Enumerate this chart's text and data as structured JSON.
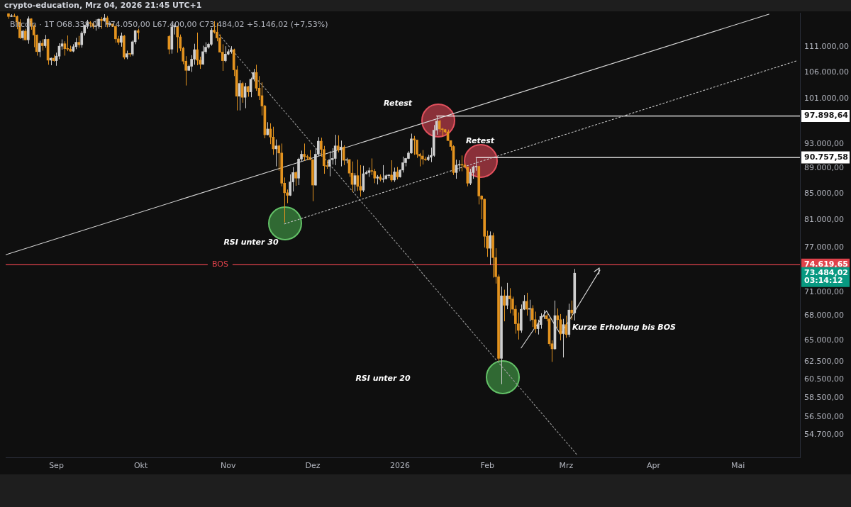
{
  "chart_data": {
    "type": "candlestick",
    "title": "crypto-education, Mrz 04, 2026 21:45 UTC+1",
    "subtitle": "Bitcoin · 1T  O68.338,01 H74.050,00 L67.400,00 C73.484,02 +5.146,02 (+7,53%)",
    "x": [
      "2025-08-15",
      "2025-08-16",
      "2025-08-17",
      "2025-08-18",
      "2025-08-19",
      "2025-08-20",
      "2025-08-21",
      "2025-08-22",
      "2025-08-23",
      "2025-08-24",
      "2025-08-25",
      "2025-08-26",
      "2025-08-27",
      "2025-08-28",
      "2025-08-29",
      "2025-08-30",
      "2025-08-31",
      "2025-09-01",
      "2025-09-02",
      "2025-09-03",
      "2025-09-04",
      "2025-09-05",
      "2025-09-06",
      "2025-09-07",
      "2025-09-08",
      "2025-09-09",
      "2025-09-10",
      "2025-09-11",
      "2025-09-12",
      "2025-09-13",
      "2025-09-14",
      "2025-09-15",
      "2025-09-16",
      "2025-09-17",
      "2025-09-18",
      "2025-09-19",
      "2025-09-20",
      "2025-09-21",
      "2025-09-22",
      "2025-09-23",
      "2025-09-24",
      "2025-09-25",
      "2025-09-26",
      "2025-09-27",
      "2025-09-28",
      "2025-09-29",
      "2025-09-30",
      "2025-10-11",
      "2025-10-12",
      "2025-10-13",
      "2025-10-14",
      "2025-10-15",
      "2025-10-16",
      "2025-10-17",
      "2025-10-18",
      "2025-10-19",
      "2025-10-20",
      "2025-10-21",
      "2025-10-22",
      "2025-10-23",
      "2025-10-24",
      "2025-10-25",
      "2025-10-26",
      "2025-10-27",
      "2025-10-28",
      "2025-10-29",
      "2025-10-30",
      "2025-10-31",
      "2025-11-01",
      "2025-11-02",
      "2025-11-03",
      "2025-11-04",
      "2025-11-05",
      "2025-11-06",
      "2025-11-07",
      "2025-11-08",
      "2025-11-09",
      "2025-11-10",
      "2025-11-11",
      "2025-11-12",
      "2025-11-13",
      "2025-11-14",
      "2025-11-15",
      "2025-11-16",
      "2025-11-17",
      "2025-11-18",
      "2025-11-19",
      "2025-11-20",
      "2025-11-21",
      "2025-11-22",
      "2025-11-23",
      "2025-11-24",
      "2025-11-25",
      "2025-11-26",
      "2025-11-27",
      "2025-11-28",
      "2025-11-29",
      "2025-11-30",
      "2025-12-01",
      "2025-12-02",
      "2025-12-03",
      "2025-12-04",
      "2025-12-05",
      "2025-12-06",
      "2025-12-07",
      "2025-12-08",
      "2025-12-09",
      "2025-12-10",
      "2025-12-11",
      "2025-12-12",
      "2025-12-13",
      "2025-12-14",
      "2025-12-15",
      "2025-12-16",
      "2025-12-17",
      "2025-12-18",
      "2025-12-19",
      "2025-12-20",
      "2025-12-21",
      "2025-12-22",
      "2025-12-23",
      "2025-12-24",
      "2025-12-25",
      "2025-12-26",
      "2025-12-27",
      "2025-12-28",
      "2025-12-29",
      "2025-12-30",
      "2025-12-31",
      "2026-01-01",
      "2026-01-02",
      "2026-01-03",
      "2026-01-04",
      "2026-01-05",
      "2026-01-06",
      "2026-01-07",
      "2026-01-08",
      "2026-01-09",
      "2026-01-10",
      "2026-01-11",
      "2026-01-12",
      "2026-01-13",
      "2026-01-14",
      "2026-01-15",
      "2026-01-16",
      "2026-01-17",
      "2026-01-18",
      "2026-01-19",
      "2026-01-20",
      "2026-01-21",
      "2026-01-22",
      "2026-01-23",
      "2026-01-24",
      "2026-01-25",
      "2026-01-26",
      "2026-01-27",
      "2026-01-28",
      "2026-01-29",
      "2026-01-30",
      "2026-01-31",
      "2026-02-01",
      "2026-02-02",
      "2026-02-03",
      "2026-02-04",
      "2026-02-05",
      "2026-02-06",
      "2026-02-07",
      "2026-02-08",
      "2026-02-09",
      "2026-02-10",
      "2026-02-11",
      "2026-02-12",
      "2026-02-13",
      "2026-02-14",
      "2026-02-15",
      "2026-02-16",
      "2026-02-17",
      "2026-02-18",
      "2026-02-19",
      "2026-02-20",
      "2026-02-21",
      "2026-02-22",
      "2026-02-23",
      "2026-02-24",
      "2026-02-25",
      "2026-02-26",
      "2026-02-27",
      "2026-02-28",
      "2026-03-01",
      "2026-03-02",
      "2026-03-03",
      "2026-03-04"
    ],
    "ohlc": [
      [
        118000,
        118100,
        116900,
        117400
      ],
      [
        117400,
        117900,
        117300,
        117500
      ],
      [
        117500,
        118000,
        117300,
        117400
      ],
      [
        117400,
        117600,
        114700,
        116200
      ],
      [
        116200,
        116800,
        112700,
        112900
      ],
      [
        112900,
        114600,
        112400,
        114300
      ],
      [
        114300,
        114800,
        112400,
        112500
      ],
      [
        112500,
        117400,
        111700,
        116900
      ],
      [
        116900,
        117000,
        114600,
        115400
      ],
      [
        115400,
        115700,
        111000,
        113500
      ],
      [
        113500,
        113600,
        109300,
        110100
      ],
      [
        110100,
        112300,
        109000,
        111800
      ],
      [
        111800,
        112600,
        110300,
        111300
      ],
      [
        111300,
        113500,
        110900,
        112600
      ],
      [
        112600,
        112700,
        107500,
        108400
      ],
      [
        108400,
        108900,
        107400,
        108800
      ],
      [
        108800,
        109500,
        108100,
        108300
      ],
      [
        108300,
        109900,
        107300,
        109200
      ],
      [
        109200,
        111800,
        108600,
        111200
      ],
      [
        111200,
        112600,
        110500,
        111700
      ],
      [
        111700,
        112200,
        109300,
        110700
      ],
      [
        110700,
        113400,
        110200,
        110600
      ],
      [
        110600,
        111300,
        110100,
        110200
      ],
      [
        110200,
        111600,
        110000,
        111100
      ],
      [
        111100,
        112900,
        110600,
        112000
      ],
      [
        112000,
        113300,
        110900,
        111500
      ],
      [
        111500,
        114300,
        110900,
        113900
      ],
      [
        113900,
        115600,
        113400,
        115500
      ],
      [
        115500,
        116700,
        114800,
        116100
      ],
      [
        116100,
        116400,
        115200,
        115900
      ],
      [
        115900,
        116100,
        114800,
        115300
      ],
      [
        115300,
        116800,
        114400,
        115400
      ],
      [
        115400,
        117000,
        114800,
        116800
      ],
      [
        116800,
        117300,
        114800,
        116500
      ],
      [
        116500,
        117900,
        116300,
        117100
      ],
      [
        117100,
        117500,
        115100,
        115700
      ],
      [
        115700,
        116100,
        115500,
        115800
      ],
      [
        115800,
        115900,
        115200,
        115300
      ],
      [
        115300,
        115400,
        111900,
        112700
      ],
      [
        112700,
        113300,
        111500,
        112000
      ],
      [
        112000,
        114000,
        111100,
        113300
      ],
      [
        113300,
        113500,
        108600,
        109000
      ],
      [
        109000,
        110300,
        108600,
        109700
      ],
      [
        109700,
        109800,
        109100,
        109600
      ],
      [
        109600,
        112400,
        109200,
        112100
      ],
      [
        112100,
        114500,
        111600,
        114400
      ],
      [
        114400,
        114800,
        112600,
        114000
      ],
      [
        113200,
        113500,
        109600,
        110600
      ],
      [
        110600,
        115900,
        109700,
        115200
      ],
      [
        115200,
        115900,
        113600,
        115300
      ],
      [
        115300,
        115400,
        109900,
        113100
      ],
      [
        113100,
        113600,
        110200,
        110800
      ],
      [
        110800,
        111100,
        107600,
        108200
      ],
      [
        108200,
        109200,
        103500,
        106400
      ],
      [
        106400,
        107500,
        106300,
        107200
      ],
      [
        107200,
        109400,
        106100,
        108600
      ],
      [
        108600,
        111700,
        107500,
        110500
      ],
      [
        110500,
        114000,
        107400,
        108400
      ],
      [
        108400,
        109100,
        106700,
        107600
      ],
      [
        107600,
        111300,
        107500,
        110100
      ],
      [
        110100,
        112000,
        109700,
        111000
      ],
      [
        111000,
        111900,
        110700,
        111600
      ],
      [
        111600,
        115000,
        111300,
        114500
      ],
      [
        114500,
        116400,
        113800,
        114100
      ],
      [
        114100,
        116100,
        112200,
        112900
      ],
      [
        112900,
        113600,
        109900,
        110000
      ],
      [
        110000,
        111600,
        106300,
        108300
      ],
      [
        108300,
        111200,
        108000,
        109600
      ],
      [
        109600,
        110600,
        109400,
        110100
      ],
      [
        110100,
        111200,
        109700,
        110500
      ],
      [
        110500,
        110700,
        105300,
        106500
      ],
      [
        106500,
        107300,
        98900,
        101500
      ],
      [
        101500,
        104500,
        98900,
        103900
      ],
      [
        103900,
        104200,
        100300,
        101300
      ],
      [
        101300,
        104000,
        99300,
        103300
      ],
      [
        103300,
        103400,
        101400,
        102300
      ],
      [
        102300,
        105000,
        101300,
        104700
      ],
      [
        104700,
        106700,
        104300,
        106000
      ],
      [
        106000,
        107500,
        102500,
        103000
      ],
      [
        103000,
        105300,
        100800,
        101600
      ],
      [
        101600,
        104100,
        98000,
        99700
      ],
      [
        99700,
        99900,
        94000,
        94600
      ],
      [
        94600,
        96800,
        94500,
        95600
      ],
      [
        95600,
        96600,
        93000,
        94200
      ],
      [
        94200,
        96000,
        91200,
        92200
      ],
      [
        92200,
        93800,
        89300,
        92700
      ],
      [
        92700,
        92900,
        88600,
        91500
      ],
      [
        91500,
        93100,
        86100,
        86600
      ],
      [
        86600,
        87500,
        80600,
        85100
      ],
      [
        85100,
        85600,
        83500,
        84700
      ],
      [
        84700,
        88000,
        84600,
        86800
      ],
      [
        86800,
        89200,
        85300,
        88300
      ],
      [
        88300,
        88500,
        86200,
        87400
      ],
      [
        87400,
        90700,
        86300,
        90500
      ],
      [
        90500,
        91900,
        90100,
        91300
      ],
      [
        91300,
        93100,
        90200,
        90900
      ],
      [
        90900,
        91200,
        90300,
        90800
      ],
      [
        90800,
        92000,
        90300,
        90400
      ],
      [
        90400,
        90400,
        83800,
        86300
      ],
      [
        86300,
        92300,
        86200,
        91300
      ],
      [
        91300,
        94200,
        91000,
        93500
      ],
      [
        93500,
        94100,
        90900,
        92100
      ],
      [
        92100,
        92700,
        88100,
        89400
      ],
      [
        89400,
        90300,
        88900,
        89300
      ],
      [
        89300,
        91800,
        87700,
        90400
      ],
      [
        90400,
        92300,
        89600,
        90600
      ],
      [
        90600,
        94600,
        89500,
        92700
      ],
      [
        92700,
        94500,
        91600,
        92000
      ],
      [
        92000,
        93600,
        89300,
        92500
      ],
      [
        92500,
        92800,
        89500,
        90300
      ],
      [
        90300,
        90700,
        89800,
        90400
      ],
      [
        90400,
        90500,
        87600,
        88200
      ],
      [
        88200,
        90100,
        85200,
        86400
      ],
      [
        86400,
        88200,
        85300,
        87800
      ],
      [
        87800,
        90400,
        85400,
        86100
      ],
      [
        86100,
        89500,
        84500,
        85500
      ],
      [
        85500,
        89400,
        85200,
        88100
      ],
      [
        88100,
        88600,
        88000,
        88300
      ],
      [
        88300,
        89100,
        87600,
        88600
      ],
      [
        88600,
        90600,
        87900,
        88500
      ],
      [
        88500,
        88900,
        86600,
        87400
      ],
      [
        87400,
        87900,
        86400,
        87600
      ],
      [
        87600,
        88000,
        86900,
        87200
      ],
      [
        87200,
        89500,
        86700,
        87300
      ],
      [
        87300,
        88000,
        87200,
        87800
      ],
      [
        87800,
        88000,
        87400,
        87900
      ],
      [
        87900,
        90300,
        86800,
        87100
      ],
      [
        87100,
        89100,
        86800,
        88400
      ],
      [
        88400,
        89200,
        87200,
        87600
      ],
      [
        87600,
        88800,
        87500,
        88700
      ],
      [
        88700,
        90900,
        88300,
        89900
      ],
      [
        89900,
        90700,
        89300,
        90600
      ],
      [
        90600,
        91800,
        90500,
        91500
      ],
      [
        91500,
        94800,
        91400,
        93900
      ],
      [
        93900,
        94400,
        91200,
        93700
      ],
      [
        93700,
        93700,
        90700,
        91300
      ],
      [
        91300,
        91500,
        89300,
        91000
      ],
      [
        91000,
        92000,
        89600,
        90500
      ],
      [
        90500,
        90900,
        90200,
        90400
      ],
      [
        90400,
        91200,
        90200,
        90800
      ],
      [
        90800,
        92400,
        90000,
        91100
      ],
      [
        91100,
        96300,
        90900,
        95400
      ],
      [
        95400,
        97898.64,
        94600,
        97000
      ],
      [
        97000,
        97200,
        95100,
        95600
      ],
      [
        95600,
        95800,
        94300,
        95500
      ],
      [
        95500,
        95600,
        94900,
        95100
      ],
      [
        95100,
        95500,
        93600,
        93600
      ],
      [
        93600,
        93600,
        91900,
        92600
      ],
      [
        92600,
        92800,
        87900,
        88300
      ],
      [
        88300,
        90400,
        87300,
        89500
      ],
      [
        89500,
        90300,
        88500,
        89600
      ],
      [
        89600,
        91100,
        88500,
        89500
      ],
      [
        89500,
        89800,
        89000,
        89200
      ],
      [
        89200,
        89200,
        86100,
        86600
      ],
      [
        86600,
        88900,
        86300,
        88300
      ],
      [
        88300,
        89400,
        87300,
        89200
      ],
      [
        89200,
        90757.58,
        88600,
        89300
      ],
      [
        89300,
        89400,
        83300,
        84600
      ],
      [
        84600,
        84700,
        81100,
        84100
      ],
      [
        84100,
        84200,
        77000,
        78600
      ],
      [
        78600,
        79400,
        75700,
        76900
      ],
      [
        76900,
        79300,
        74600,
        78700
      ],
      [
        78700,
        79100,
        72900,
        75600
      ],
      [
        75600,
        76900,
        72100,
        73000
      ],
      [
        73000,
        73300,
        62600,
        62900
      ],
      [
        62900,
        71700,
        60000,
        70500
      ],
      [
        70500,
        71300,
        67300,
        69300
      ],
      [
        69300,
        72200,
        68800,
        70500
      ],
      [
        70500,
        71500,
        68300,
        70100
      ],
      [
        70100,
        70400,
        68000,
        68800
      ],
      [
        68800,
        69300,
        65800,
        67000
      ],
      [
        67000,
        68400,
        65100,
        66200
      ],
      [
        66200,
        69400,
        65900,
        68800
      ],
      [
        68800,
        70600,
        68700,
        69800
      ],
      [
        69800,
        70900,
        68000,
        68800
      ],
      [
        68800,
        70000,
        67300,
        68900
      ],
      [
        68900,
        69300,
        66600,
        67500
      ],
      [
        67500,
        68500,
        65900,
        66400
      ],
      [
        66400,
        67500,
        65700,
        66900
      ],
      [
        66900,
        68300,
        66400,
        67900
      ],
      [
        67900,
        68700,
        67600,
        68000
      ],
      [
        68000,
        68200,
        67300,
        67600
      ],
      [
        67600,
        67700,
        64300,
        64600
      ],
      [
        64600,
        65000,
        62500,
        64000
      ],
      [
        64000,
        69900,
        63900,
        68000
      ],
      [
        68000,
        68900,
        66500,
        67500
      ],
      [
        67500,
        68200,
        65000,
        65800
      ],
      [
        65800,
        67600,
        63000,
        66900
      ],
      [
        66900,
        68000,
        65300,
        65700
      ],
      [
        65700,
        69500,
        65400,
        68700
      ],
      [
        68700,
        69900,
        67500,
        68338.01
      ],
      [
        68338.01,
        74050,
        67400,
        73484.02
      ]
    ],
    "colors": [
      "#e3931f",
      "#cfcfcf",
      "#e3931f",
      "#e3931f",
      "#e3931f",
      "#cfcfcf",
      "#e3931f",
      "#cfcfcf",
      "#e3931f",
      "#e3931f",
      "#e3931f",
      "#cfcfcf",
      "#e3931f",
      "#cfcfcf",
      "#e3931f",
      "#cfcfcf",
      "#e3931f",
      "#cfcfcf",
      "#cfcfcf",
      "#cfcfcf",
      "#e3931f",
      "#e3931f",
      "#e3931f",
      "#cfcfcf",
      "#cfcfcf",
      "#e3931f",
      "#cfcfcf",
      "#cfcfcf",
      "#cfcfcf",
      "#e3931f",
      "#e3931f",
      "#cfcfcf",
      "#cfcfcf",
      "#e3931f",
      "#cfcfcf",
      "#e3931f",
      "#cfcfcf",
      "#e3931f",
      "#e3931f",
      "#e3931f",
      "#cfcfcf",
      "#e3931f",
      "#cfcfcf",
      "#e3931f",
      "#cfcfcf",
      "#cfcfcf",
      "#e3931f",
      "#e3931f",
      "#cfcfcf",
      "#cfcfcf",
      "#e3931f",
      "#e3931f",
      "#e3931f",
      "#e3931f",
      "#cfcfcf",
      "#cfcfcf",
      "#cfcfcf",
      "#e3931f",
      "#e3931f",
      "#cfcfcf",
      "#cfcfcf",
      "#cfcfcf",
      "#cfcfcf",
      "#e3931f",
      "#e3931f",
      "#e3931f",
      "#e3931f",
      "#cfcfcf",
      "#cfcfcf",
      "#cfcfcf",
      "#e3931f",
      "#e3931f",
      "#cfcfcf",
      "#e3931f",
      "#cfcfcf",
      "#e3931f",
      "#cfcfcf",
      "#cfcfcf",
      "#e3931f",
      "#e3931f",
      "#e3931f",
      "#e3931f",
      "#cfcfcf",
      "#e3931f",
      "#e3931f",
      "#cfcfcf",
      "#e3931f",
      "#e3931f",
      "#e3931f",
      "#e3931f",
      "#cfcfcf",
      "#cfcfcf",
      "#e3931f",
      "#cfcfcf",
      "#cfcfcf",
      "#e3931f",
      "#e3931f",
      "#e3931f",
      "#e3931f",
      "#cfcfcf",
      "#cfcfcf",
      "#e3931f",
      "#e3931f",
      "#e3931f",
      "#cfcfcf",
      "#cfcfcf",
      "#cfcfcf",
      "#e3931f",
      "#cfcfcf",
      "#e3931f",
      "#cfcfcf",
      "#e3931f",
      "#e3931f",
      "#cfcfcf",
      "#e3931f",
      "#e3931f",
      "#cfcfcf",
      "#cfcfcf",
      "#cfcfcf",
      "#e3931f",
      "#e3931f",
      "#cfcfcf",
      "#e3931f",
      "#cfcfcf",
      "#cfcfcf",
      "#cfcfcf",
      "#e3931f",
      "#cfcfcf",
      "#e3931f",
      "#cfcfcf",
      "#cfcfcf",
      "#cfcfcf",
      "#cfcfcf",
      "#cfcfcf",
      "#e3931f",
      "#e3931f",
      "#e3931f",
      "#e3931f",
      "#e3931f",
      "#cfcfcf",
      "#cfcfcf",
      "#cfcfcf",
      "#cfcfcf",
      "#e3931f",
      "#e3931f",
      "#e3931f",
      "#e3931f",
      "#e3931f",
      "#e3931f",
      "#cfcfcf",
      "#cfcfcf",
      "#e3931f",
      "#e3931f",
      "#e3931f",
      "#cfcfcf",
      "#cfcfcf",
      "#cfcfcf",
      "#e3931f",
      "#e3931f",
      "#e3931f",
      "#e3931f",
      "#cfcfcf",
      "#e3931f",
      "#e3931f",
      "#e3931f",
      "#cfcfcf",
      "#e3931f",
      "#cfcfcf",
      "#e3931f",
      "#e3931f",
      "#e3931f",
      "#e3931f",
      "#cfcfcf",
      "#cfcfcf",
      "#e3931f",
      "#cfcfcf",
      "#e3931f",
      "#e3931f",
      "#cfcfcf",
      "#cfcfcf",
      "#cfcfcf",
      "#e3931f",
      "#e3931f",
      "#e3931f",
      "#cfcfcf",
      "#e3931f",
      "#e3931f",
      "#cfcfcf",
      "#e3931f",
      "#cfcfcf",
      "#e3931f",
      "#cfcfcf"
    ],
    "value_labels": [
      null,
      null,
      null,
      null,
      null,
      null,
      null,
      null,
      null,
      null,
      null,
      null,
      null,
      null,
      null,
      null,
      null,
      null,
      null,
      null,
      null,
      null,
      null,
      null,
      null,
      null,
      null,
      null,
      null,
      null,
      null,
      null,
      null,
      null,
      null,
      null,
      null,
      null,
      null,
      null,
      null,
      null,
      null,
      null,
      null,
      null,
      null,
      null,
      null,
      null,
      null,
      null,
      null,
      null,
      null,
      null,
      null,
      null,
      null,
      null,
      null,
      null,
      null,
      null,
      null,
      null,
      null,
      null,
      null,
      null,
      null,
      null,
      null,
      null,
      null,
      null,
      null,
      null,
      null,
      null,
      null,
      null,
      null,
      null,
      null,
      null,
      null,
      null,
      null,
      null,
      null,
      null,
      null,
      null,
      null,
      null,
      null,
      null,
      null,
      null,
      null,
      null,
      null,
      null,
      null,
      null,
      null,
      null,
      null,
      null,
      null,
      null,
      null,
      null,
      null,
      null,
      null,
      null,
      null,
      null,
      null,
      null,
      null,
      null,
      null,
      null,
      null,
      null,
      null,
      null,
      null,
      null,
      null,
      null,
      null,
      null,
      null,
      null,
      null,
      null,
      null,
      null,
      null,
      null,
      null,
      null,
      null,
      null,
      null,
      null,
      null,
      null,
      null,
      null,
      null,
      null,
      null,
      null,
      null,
      null,
      null,
      null,
      null,
      null,
      null,
      null,
      null,
      null,
      null,
      null,
      null,
      null,
      null,
      null,
      null,
      null,
      null,
      null,
      null,
      null,
      null,
      null,
      null,
      null,
      null,
      null,
      null,
      null,
      null,
      null,
      null,
      "73.484,02"
    ],
    "series": [
      {
        "type": "line",
        "x": [
          "2025-08-14",
          "2026-05-12"
        ],
        "values": [
          76000,
          117900
        ],
        "color": "#d9d9d9",
        "line_style": "solid"
      },
      {
        "type": "line",
        "x": [
          "2025-11-21",
          "2026-05-22"
        ],
        "values": [
          80400,
          108300
        ],
        "color": "#c8c8c8",
        "line_style": "dotted"
      },
      {
        "type": "line",
        "x": [
          "2025-10-28",
          "2026-03-05"
        ],
        "values": [
          114100,
          52700
        ],
        "color": "#9a9a9a",
        "line_style": "dotted"
      },
      {
        "type": "line",
        "x": [
          "2026-02-13",
          "2026-02-22",
          "2026-02-27",
          "2026-03-13"
        ],
        "values": [
          64100,
          68600,
          65700,
          73900
        ],
        "color": "#d9d9d9",
        "line_style": "solid"
      },
      {
        "type": "line",
        "x": [
          "2026-01-14",
          "2026-05-23"
        ],
        "values": [
          97898.64,
          97898.64
        ],
        "color": "#ffffff",
        "line_style": "solid",
        "value_labels": [
          null,
          "97.898,64"
        ]
      },
      {
        "type": "line",
        "x": [
          "2026-01-28",
          "2026-05-23"
        ],
        "values": [
          90757.58,
          90757.58
        ],
        "color": "#ffffff",
        "line_style": "solid",
        "value_labels": [
          null,
          "90.757,58"
        ]
      },
      {
        "type": "line",
        "name": "BOS",
        "x": [
          "2025-08-14",
          "2026-05-23"
        ],
        "values": [
          74619.65,
          74619.65
        ],
        "color": "#e0424b",
        "line_style": "solid",
        "value_labels": [
          null,
          "74.619,65"
        ]
      }
    ],
    "annotations": [
      "Retest",
      "Retest",
      "RSI unter 30",
      "RSI unter 20",
      "Kurze Erholung bis BOS",
      "03:14:12"
    ],
    "marker": "none",
    "log": true,
    "xlim": [
      "2025-08-14",
      "2026-05-23"
    ],
    "xticks": [
      {
        "value": "2025-09-01",
        "label": "Sep"
      },
      {
        "value": "2025-10-01",
        "label": "Okt"
      },
      {
        "value": "2025-11-01",
        "label": "Nov"
      },
      {
        "value": "2025-12-01",
        "label": "Dez"
      },
      {
        "value": "2026-01-01",
        "label": "2026"
      },
      {
        "value": "2026-02-01",
        "label": "Feb"
      },
      {
        "value": "2026-03-01",
        "label": "Mrz"
      },
      {
        "value": "2026-04-01",
        "label": "Apr"
      },
      {
        "value": "2026-05-01",
        "label": "Mai"
      }
    ],
    "ylim": [
      52500,
      118200
    ],
    "yticks": [
      {
        "value": 54700,
        "label": "54.700,00"
      },
      {
        "value": 56500,
        "label": "56.500,00"
      },
      {
        "value": 58500,
        "label": "58.500,00"
      },
      {
        "value": 60500,
        "label": "60.500,00"
      },
      {
        "value": 62500,
        "label": "62.500,00"
      },
      {
        "value": 65000,
        "label": "65.000,00"
      },
      {
        "value": 68000,
        "label": "68.000,00"
      },
      {
        "value": 71000,
        "label": "71.000,00"
      },
      {
        "value": 77000,
        "label": "77.000,00"
      },
      {
        "value": 81000,
        "label": "81.000,00"
      },
      {
        "value": 85000,
        "label": "85.000,00"
      },
      {
        "value": 89000,
        "label": "89.000,00"
      },
      {
        "value": 93000,
        "label": "93.000,00"
      },
      {
        "value": 101000,
        "label": "101.000,00"
      },
      {
        "value": 106000,
        "label": "106.000,00"
      },
      {
        "value": 111000,
        "label": "111.000,00"
      }
    ]
  }
}
